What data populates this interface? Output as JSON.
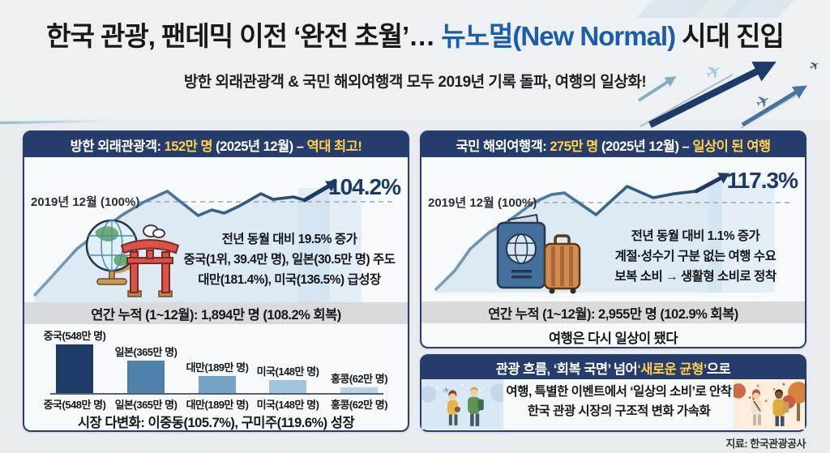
{
  "header": {
    "title_part1": "한국 관광, 팬데믹 이전 ‘완전 초월’…",
    "title_highlight": "뉴노멀(New Normal)",
    "title_part2": "시대 진입",
    "subtitle": "방한 외래관광객 & 국민 해외여행객 모두 2019년 기록 돌파, 여행의 일상화!"
  },
  "left_panel": {
    "title": {
      "label": "방한 외래관광객:",
      "value": "152만 명",
      "period": "(2025년 12월) –",
      "highlight": "역대 최고!"
    },
    "baseline_label": "2019년 12월 (100%)",
    "peak_label": "104.2%",
    "notes": [
      "전년 동월 대비 19.5% 증가",
      "중국(1위, 39.4만 명), 일본(30.5만 명) 주도",
      "대만(181.4%), 미국(136.5%) 급성장"
    ],
    "annual": "연간 누적 (1~12월): 1,894만 명 (108.2% 회복)",
    "market_note": "시장 다변화: 이중동(105.7%), 구미주(119.6%) 성장"
  },
  "right_panel": {
    "title": {
      "label": "국민 해외여행객:",
      "value": "275만 명",
      "period": "(2025년 12월) –",
      "highlight": "일상이 된 여행"
    },
    "baseline_label": "2019년 12월 (100%)",
    "peak_label": "117.3%",
    "notes": [
      "전년 동월 대비 1.1% 증가",
      "계절·성수기 구분 없는 여행 수요",
      "보복 소비 → 생활형 소비로 정착"
    ],
    "annual": "연간 누적 (1~12월): 2,955만 명 (102.9% 회복)",
    "tagline": "여행은 다시 일상이 됐다"
  },
  "bottom_panel": {
    "title_part1": "관광 흐름, ‘회복 국면’ 넘어 ",
    "title_highlight": "‘새로운 균형’",
    "title_part2": "으로",
    "lines": [
      "여행, 특별한 이벤트에서 ‘일상의 소비’로 안착",
      "한국 관광 시장의 구조적 변화 가속화"
    ]
  },
  "source": "지료: 한국관광공사",
  "colors": {
    "accent_navy": "#263c6b",
    "highlight_yellow": "#ffd24a",
    "title_blue": "#1b5cab",
    "line_dark": "#1d3a66",
    "gray_band": "#d8dadc"
  },
  "chart_data": [
    {
      "type": "line",
      "title": "방한 외래관광객 월별 회복률 (2019년 동월=100%)",
      "baseline_label": "2019년 12월 (100%)",
      "baseline_value": 100,
      "end_label": "104.2%",
      "end_value": 104.2,
      "annotations": [
        "전년 동월 대비 19.5% 증가",
        "중국(1위, 39.4만 명), 일본(30.5만 명) 주도",
        "대만(181.4%), 미국(136.5%) 급성장"
      ],
      "points": [
        [
          2.4,
          93.3
        ],
        [
          7.7,
          78.3
        ],
        [
          13.5,
          61.7
        ],
        [
          20.0,
          48.9
        ],
        [
          25.6,
          38.3
        ],
        [
          31.4,
          29.4
        ],
        [
          37.4,
          22.2
        ],
        [
          45.6,
          38.9
        ],
        [
          49.2,
          35.0
        ],
        [
          52.5,
          37.2
        ],
        [
          56.6,
          32.2
        ],
        [
          62.2,
          23.9
        ],
        [
          65.4,
          27.8
        ],
        [
          70.8,
          26.1
        ],
        [
          73.8,
          28.3
        ],
        [
          80.4,
          18.3
        ]
      ]
    },
    {
      "type": "line",
      "title": "국민 해외여행객 월별 회복률 (2019년 동월=100%)",
      "baseline_label": "2019년 12월 (100%)",
      "baseline_value": 100,
      "end_label": "117.3%",
      "end_value": 117.3,
      "annotations": [
        "전년 동월 대비 1.1% 증가",
        "계절·성수기 구분 없는 여행 수요",
        "보복 소비 → 생활형 소비로 정착"
      ],
      "points": [
        [
          3.4,
          97.6
        ],
        [
          8.4,
          83.6
        ],
        [
          12.5,
          67.3
        ],
        [
          17.4,
          55.2
        ],
        [
          22.8,
          46.1
        ],
        [
          29.2,
          32.7
        ],
        [
          34.0,
          26.7
        ],
        [
          37.4,
          25.5
        ],
        [
          45.8,
          41.8
        ],
        [
          54.0,
          20.6
        ],
        [
          60.9,
          29.1
        ],
        [
          66.5,
          26.1
        ],
        [
          72.3,
          24.2
        ],
        [
          79.1,
          13.9
        ]
      ]
    },
    {
      "type": "bar",
      "title": "방한 외래관광객 연간 누적 주요 시장",
      "categories": [
        "중국",
        "일본",
        "대만",
        "미국",
        "홍콩"
      ],
      "values": [
        548,
        365,
        189,
        148,
        62
      ],
      "unit": "만 명",
      "labels": [
        "중국(548만 명)",
        "일본(365만 명)",
        "대만(189만 명)",
        "미국(148만 명)",
        "홍콩(62만 명)"
      ],
      "colors": [
        "#1e3a66",
        "#4f81ad",
        "#74a3c7",
        "#a3c4dd",
        "#b9d3e6"
      ]
    }
  ]
}
